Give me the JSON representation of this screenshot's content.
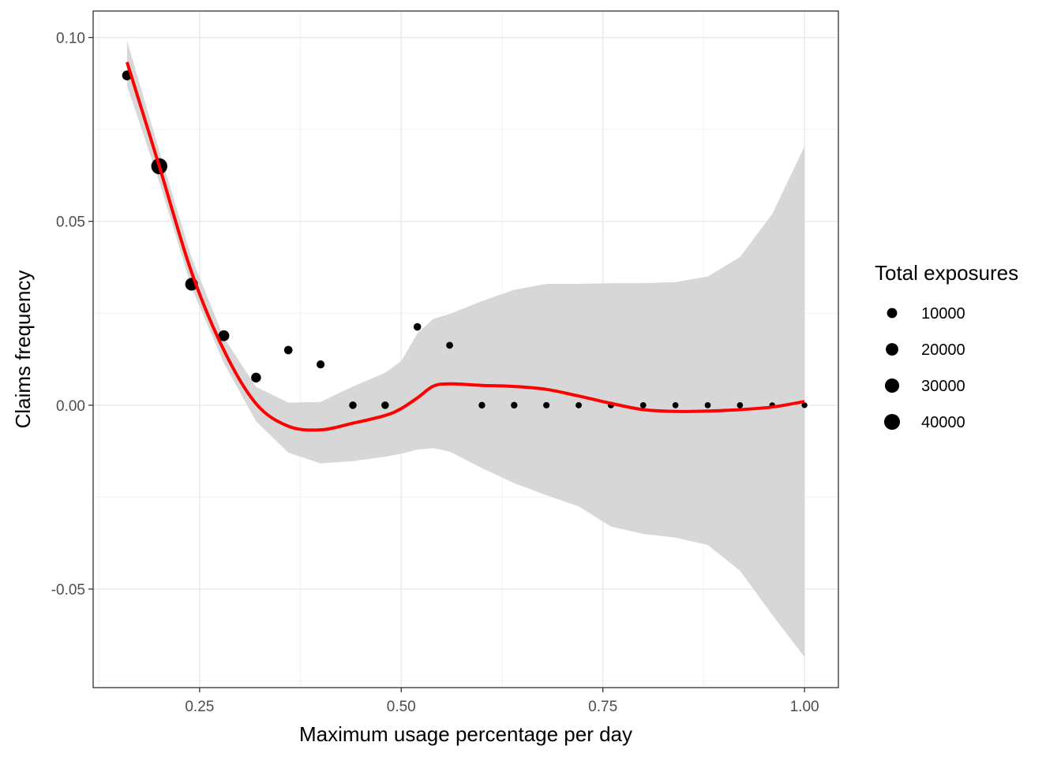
{
  "chart_data": {
    "type": "scatter",
    "xlabel": "Maximum usage percentage per day",
    "ylabel": "Claims frequency",
    "xlim": [
      0.118,
      1.042
    ],
    "ylim": [
      -0.0768,
      0.1072
    ],
    "x_ticks": [
      0.25,
      0.5,
      0.75,
      1.0
    ],
    "x_tick_labels": [
      "0.25",
      "0.50",
      "0.75",
      "1.00"
    ],
    "y_ticks": [
      -0.05,
      0.0,
      0.05,
      0.1
    ],
    "y_tick_labels": [
      "-0.05",
      "0.00",
      "0.05",
      "0.10"
    ],
    "grid": true,
    "points": [
      {
        "x": 0.16,
        "y": 0.0897,
        "size": 9000
      },
      {
        "x": 0.2,
        "y": 0.065,
        "size": 42000
      },
      {
        "x": 0.24,
        "y": 0.0329,
        "size": 21000
      },
      {
        "x": 0.28,
        "y": 0.0189,
        "size": 13000
      },
      {
        "x": 0.32,
        "y": 0.0075,
        "size": 9000
      },
      {
        "x": 0.36,
        "y": 0.015,
        "size": 5000
      },
      {
        "x": 0.4,
        "y": 0.0111,
        "size": 4000
      },
      {
        "x": 0.44,
        "y": 0.0,
        "size": 3000
      },
      {
        "x": 0.48,
        "y": 0.0,
        "size": 3000
      },
      {
        "x": 0.52,
        "y": 0.0213,
        "size": 3000
      },
      {
        "x": 0.56,
        "y": 0.0163,
        "size": 2000
      },
      {
        "x": 0.6,
        "y": 0.0,
        "size": 1500
      },
      {
        "x": 0.64,
        "y": 0.0,
        "size": 1500
      },
      {
        "x": 0.68,
        "y": 0.0,
        "size": 1200
      },
      {
        "x": 0.72,
        "y": 0.0,
        "size": 1000
      },
      {
        "x": 0.76,
        "y": 0.0,
        "size": 1000
      },
      {
        "x": 0.8,
        "y": 0.0,
        "size": 900
      },
      {
        "x": 0.84,
        "y": 0.0,
        "size": 800
      },
      {
        "x": 0.88,
        "y": 0.0,
        "size": 800
      },
      {
        "x": 0.92,
        "y": 0.0,
        "size": 800
      },
      {
        "x": 0.96,
        "y": 0.0,
        "size": 600
      },
      {
        "x": 1.0,
        "y": 0.0,
        "size": 600
      }
    ],
    "smooth": {
      "color": "#ff0000",
      "x": [
        0.16,
        0.2,
        0.24,
        0.28,
        0.32,
        0.36,
        0.4,
        0.44,
        0.48,
        0.5,
        0.52,
        0.54,
        0.56,
        0.6,
        0.64,
        0.68,
        0.72,
        0.76,
        0.8,
        0.84,
        0.88,
        0.92,
        0.96,
        1.0
      ],
      "y": [
        0.0933,
        0.065,
        0.0362,
        0.015,
        0.0004,
        -0.0057,
        -0.0067,
        -0.0049,
        -0.0028,
        -0.0009,
        0.002,
        0.0052,
        0.0058,
        0.0054,
        0.0051,
        0.0043,
        0.0025,
        0.0005,
        -0.0012,
        -0.0017,
        -0.0016,
        -0.0012,
        -0.0005,
        0.001
      ],
      "se_lower": [
        0.0869,
        0.0608,
        0.032,
        0.0115,
        -0.0044,
        -0.0129,
        -0.0158,
        -0.0152,
        -0.014,
        -0.0132,
        -0.0121,
        -0.0117,
        -0.0126,
        -0.0171,
        -0.0212,
        -0.0245,
        -0.0275,
        -0.033,
        -0.035,
        -0.036,
        -0.038,
        -0.045,
        -0.057,
        -0.0685
      ],
      "se_upper": [
        0.0991,
        0.0692,
        0.0402,
        0.0184,
        0.005,
        0.0007,
        0.0009,
        0.0051,
        0.0088,
        0.012,
        0.0195,
        0.0235,
        0.0248,
        0.0283,
        0.0314,
        0.033,
        0.033,
        0.0332,
        0.0332,
        0.0335,
        0.035,
        0.0403,
        0.052,
        0.0704
      ],
      "band_color": "#d5d5d5"
    },
    "legend": {
      "title": "Total exposures",
      "placement": "right",
      "labels": [
        "10000",
        "20000",
        "30000",
        "40000"
      ],
      "sizes": [
        10000,
        20000,
        30000,
        40000
      ]
    },
    "colors": {
      "points": "#000000",
      "line": "#ff0000",
      "band": "#d5d5d5",
      "grid": "#ebebeb",
      "panel_border": "#333333"
    }
  }
}
